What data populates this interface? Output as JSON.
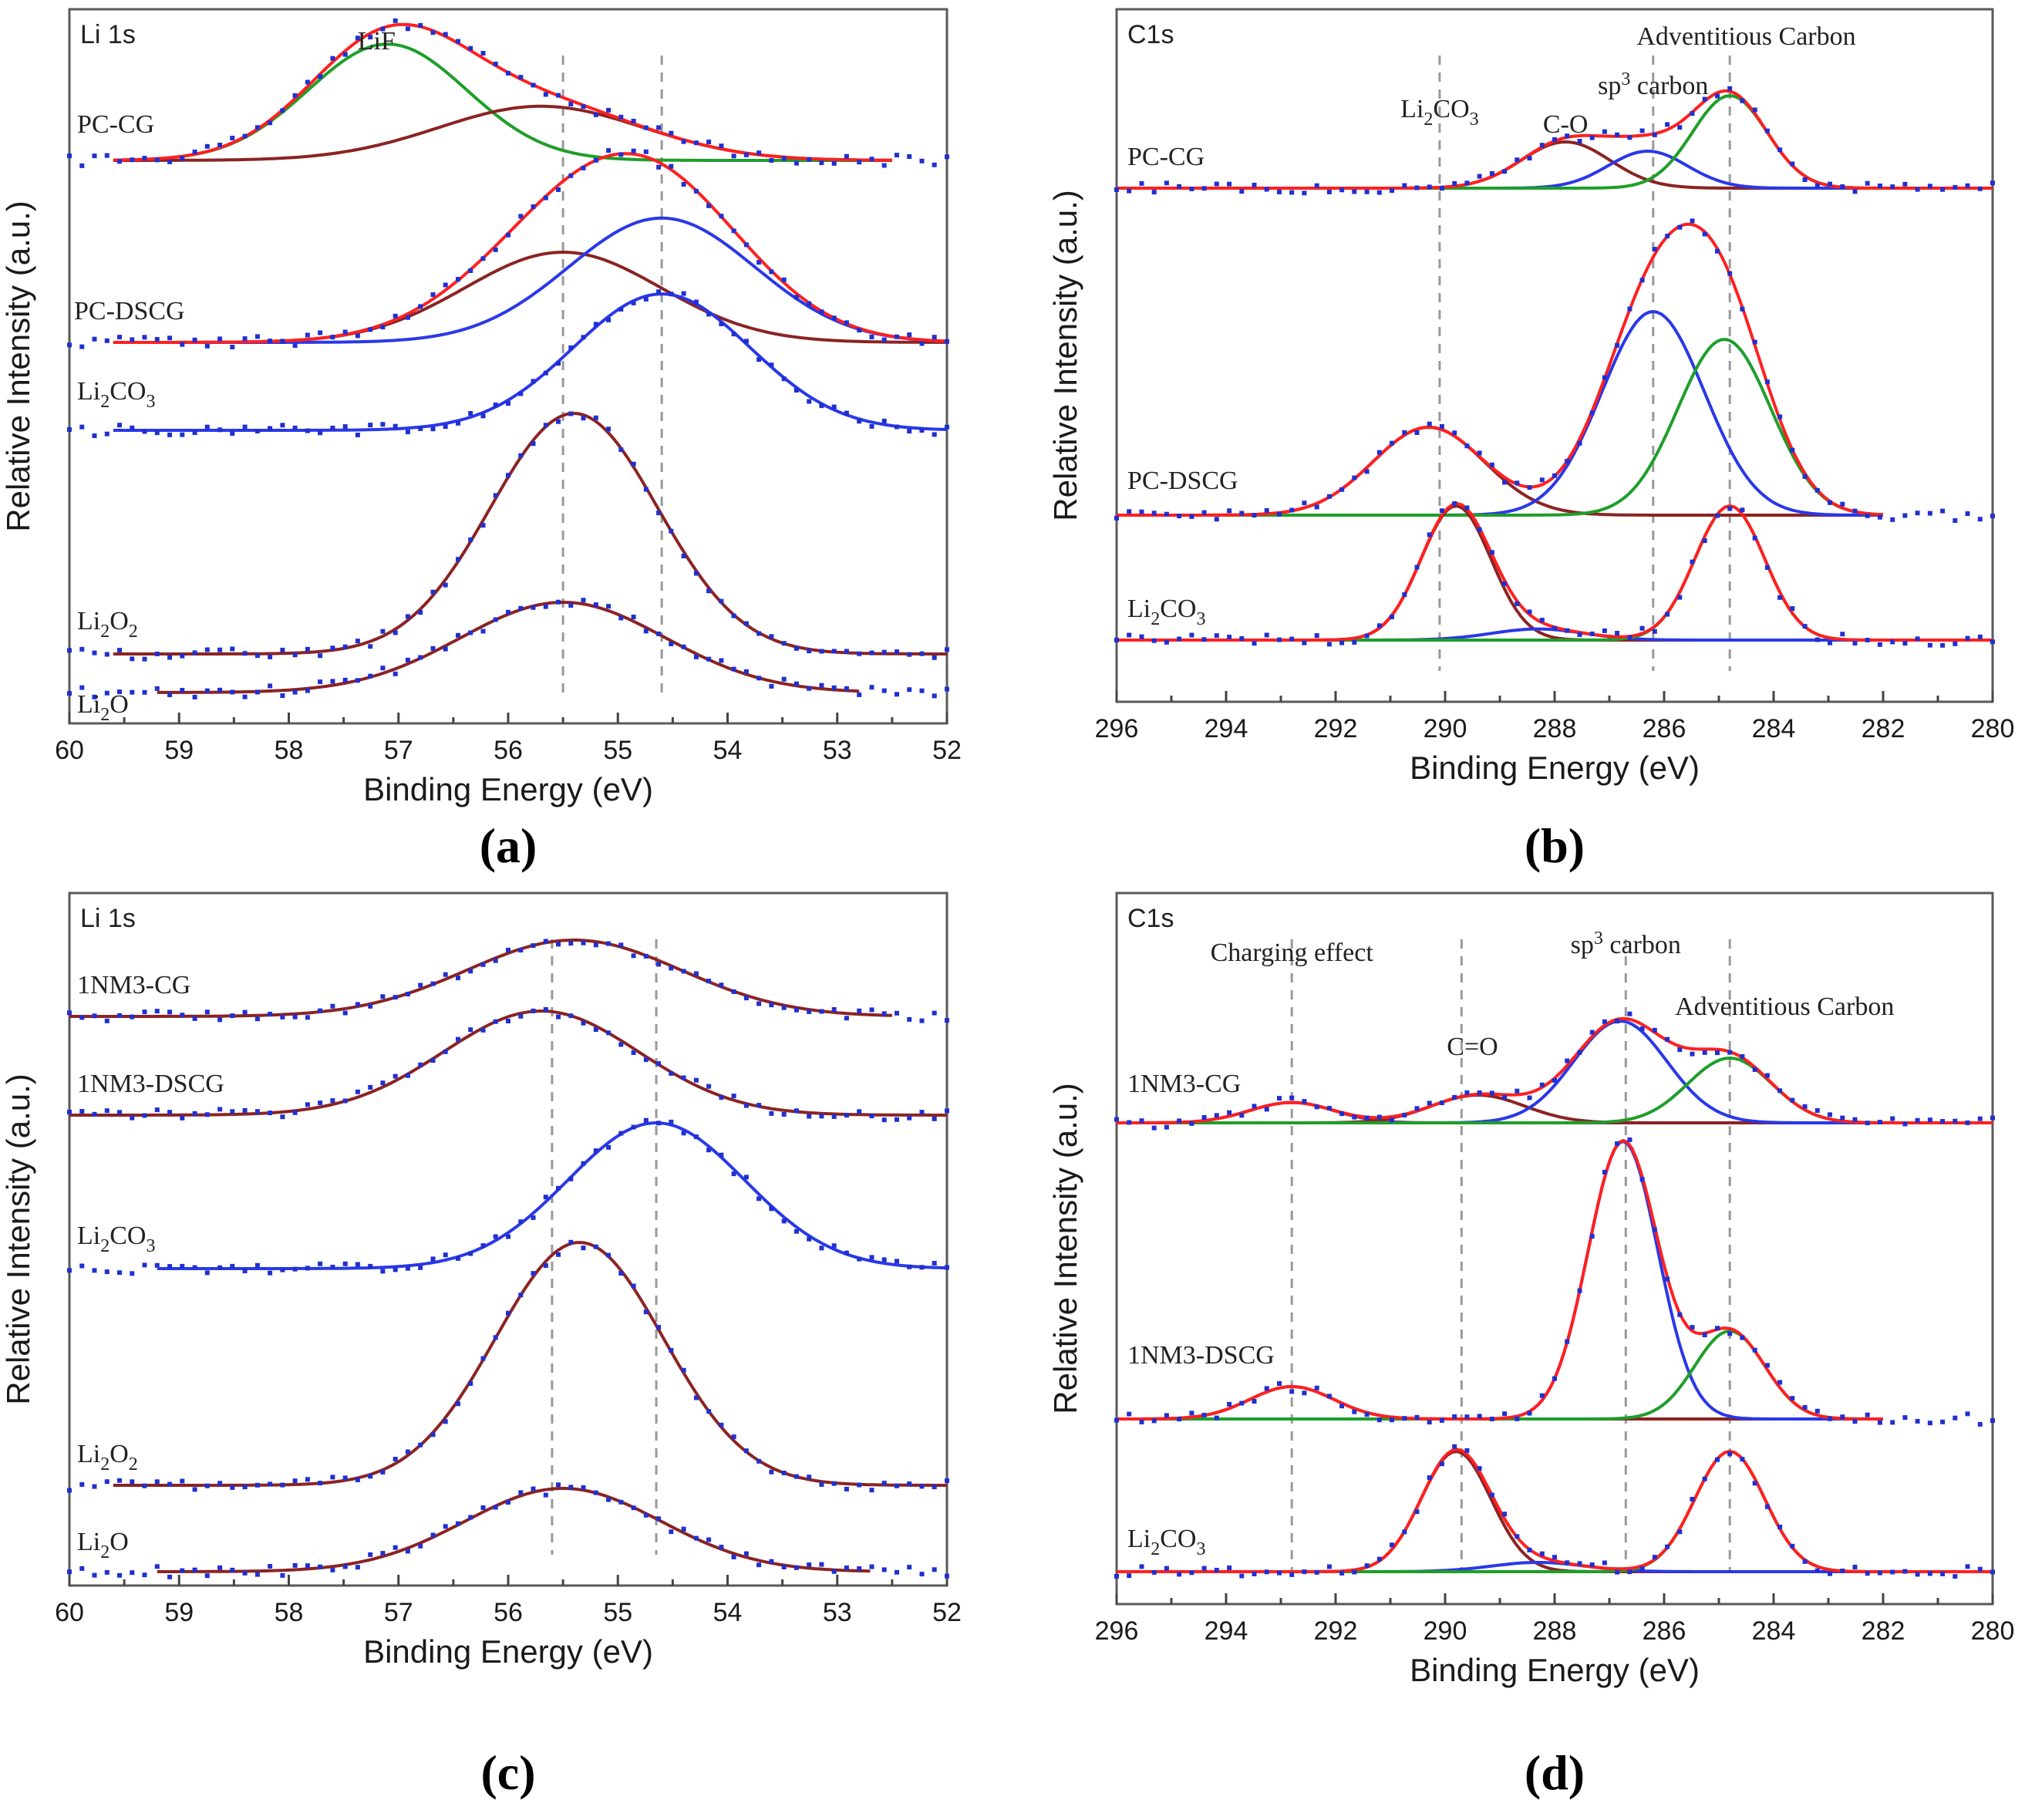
{
  "colors": {
    "fit_total": "#ff2020",
    "fit_component_brown": "#8b2323",
    "fit_component_blue": "#2a38e8",
    "fit_component_green": "#1e9e2a",
    "fit_component_purple": "#8a2a8a",
    "data_points": "#2030d0",
    "reference_lines": "#999999"
  },
  "chart_data": [
    {
      "panel": "a",
      "panel_letter": "(a)",
      "type": "line",
      "core_level": "Li 1s",
      "xlabel": "Binding Energy (eV)",
      "ylabel": "Relative Intensity (a.u.)",
      "xlim": [
        60,
        52
      ],
      "x_reversed": true,
      "xticks": [
        60,
        59,
        58,
        57,
        56,
        55,
        54,
        53,
        52
      ],
      "grid": false,
      "reference_lines_x": [
        55.5,
        54.6
      ],
      "annotations": [
        {
          "text": "LiF",
          "x": 57.2,
          "y_in_series": "PC-CG"
        }
      ],
      "series": [
        {
          "name": "PC-CG",
          "baseline": 0.0,
          "x_start": 59.6,
          "x_end": 52.5,
          "components": [
            {
              "role": "LiF",
              "color": "green",
              "center": 57.1,
              "fwhm": 1.7,
              "height": 0.58
            },
            {
              "color": "brown",
              "center": 55.7,
              "fwhm": 2.2,
              "height": 0.27
            }
          ],
          "total_color": "red"
        },
        {
          "name": "PC-DSCG",
          "baseline": 0.0,
          "x_start": 59.6,
          "x_end": 52.0,
          "components": [
            {
              "color": "brown",
              "center": 55.5,
              "fwhm": 2.1,
              "height": 0.45
            },
            {
              "color": "blue",
              "center": 54.6,
              "fwhm": 2.0,
              "height": 0.62
            }
          ],
          "total_color": "red"
        },
        {
          "name": "Li2CO3",
          "baseline": 0.0,
          "x_start": 59.6,
          "x_end": 52.0,
          "components": [
            {
              "color": "blue",
              "center": 54.6,
              "fwhm": 1.9,
              "height": 0.68
            }
          ],
          "total_color": "blue"
        },
        {
          "name": "Li2O2",
          "baseline": 0.0,
          "x_start": 59.6,
          "x_end": 52.0,
          "components": [
            {
              "color": "brown",
              "center": 55.4,
              "fwhm": 1.8,
              "height": 1.2
            }
          ],
          "total_color": "brown"
        },
        {
          "name": "Li2O",
          "baseline": 0.0,
          "x_start": 59.2,
          "x_end": 52.8,
          "components": [
            {
              "color": "brown",
              "center": 55.5,
              "fwhm": 2.2,
              "height": 0.45
            }
          ],
          "total_color": "brown"
        }
      ]
    },
    {
      "panel": "b",
      "panel_letter": "(b)",
      "type": "line",
      "core_level": "C1s",
      "xlabel": "Binding Energy (eV)",
      "ylabel": "Relative Intensity (a.u.)",
      "xlim": [
        296,
        280
      ],
      "x_reversed": true,
      "xticks": [
        296,
        294,
        292,
        290,
        288,
        286,
        284,
        282,
        280
      ],
      "grid": false,
      "reference_lines_x": [
        290.1,
        286.2,
        284.8
      ],
      "annotations": [
        {
          "text": "Li2CO3",
          "x": 290.1
        },
        {
          "text": "C-O",
          "x": 287.8
        },
        {
          "text": "sp3 carbon",
          "x": 286.2
        },
        {
          "text": "Adventitious Carbon",
          "x": 284.5
        }
      ],
      "series": [
        {
          "name": "PC-CG",
          "baseline": 0.0,
          "x_start": 296,
          "x_end": 280,
          "components": [
            {
              "color": "brown",
              "center": 287.8,
              "fwhm": 1.9,
              "height": 0.5
            },
            {
              "color": "blue",
              "center": 286.3,
              "fwhm": 1.7,
              "height": 0.4
            },
            {
              "color": "green",
              "center": 284.8,
              "fwhm": 1.6,
              "height": 1.0
            }
          ],
          "total_color": "red"
        },
        {
          "name": "PC-DSCG",
          "baseline": 0.0,
          "x_start": 296,
          "x_end": 282,
          "components": [
            {
              "color": "brown",
              "center": 290.3,
              "fwhm": 2.4,
              "height": 0.95
            },
            {
              "color": "blue",
              "center": 286.2,
              "fwhm": 2.2,
              "height": 2.2
            },
            {
              "color": "green",
              "center": 284.9,
              "fwhm": 2.0,
              "height": 1.9
            }
          ],
          "total_color": "red"
        },
        {
          "name": "Li2CO3",
          "baseline": 0.0,
          "x_start": 296,
          "x_end": 280,
          "components": [
            {
              "color": "brown",
              "center": 289.8,
              "fwhm": 1.5,
              "height": 1.45
            },
            {
              "color": "blue",
              "center": 288.3,
              "fwhm": 2.0,
              "height": 0.12
            },
            {
              "color": "green",
              "center": 284.8,
              "fwhm": 1.5,
              "height": 1.45
            }
          ],
          "total_color": "red"
        }
      ]
    },
    {
      "panel": "c",
      "panel_letter": "(c)",
      "type": "line",
      "core_level": "Li 1s",
      "xlabel": "Binding Energy (eV)",
      "ylabel": "Relative Intensity (a.u.)",
      "xlim": [
        60,
        52
      ],
      "x_reversed": true,
      "xticks": [
        60,
        59,
        58,
        57,
        56,
        55,
        54,
        53,
        52
      ],
      "grid": false,
      "reference_lines_x": [
        55.6,
        54.65
      ],
      "annotations": [],
      "series": [
        {
          "name": "1NM3-CG",
          "baseline": 0.0,
          "x_start": 60,
          "x_end": 52.5,
          "components": [
            {
              "color": "brown",
              "center": 55.4,
              "fwhm": 2.3,
              "height": 0.55
            }
          ],
          "total_color": "brown"
        },
        {
          "name": "1NM3-DSCG",
          "baseline": 0.0,
          "x_start": 60,
          "x_end": 52.0,
          "components": [
            {
              "color": "brown",
              "center": 55.7,
              "fwhm": 2.1,
              "height": 0.75
            }
          ],
          "total_color": "brown"
        },
        {
          "name": "Li2CO3",
          "baseline": 0.0,
          "x_start": 59.2,
          "x_end": 52.0,
          "components": [
            {
              "color": "blue",
              "center": 54.65,
              "fwhm": 1.9,
              "height": 1.05
            }
          ],
          "total_color": "blue"
        },
        {
          "name": "Li2O2",
          "baseline": 0.0,
          "x_start": 59.6,
          "x_end": 52.0,
          "components": [
            {
              "color": "brown",
              "center": 55.35,
              "fwhm": 1.8,
              "height": 1.75
            }
          ],
          "total_color": "brown"
        },
        {
          "name": "Li2O",
          "baseline": 0.0,
          "x_start": 59.2,
          "x_end": 52.7,
          "components": [
            {
              "color": "brown",
              "center": 55.5,
              "fwhm": 2.1,
              "height": 0.6
            }
          ],
          "total_color": "brown"
        }
      ]
    },
    {
      "panel": "d",
      "panel_letter": "(d)",
      "type": "line",
      "core_level": "C1s",
      "xlabel": "Binding Energy (eV)",
      "ylabel": "Relative Intensity (a.u.)",
      "xlim": [
        296,
        280
      ],
      "x_reversed": true,
      "xticks": [
        296,
        294,
        292,
        290,
        288,
        286,
        284,
        282,
        280
      ],
      "grid": false,
      "reference_lines_x": [
        292.8,
        289.7,
        286.7,
        284.8
      ],
      "annotations": [
        {
          "text": "Charging effect",
          "x": 292.8
        },
        {
          "text": "C=O",
          "x": 289.5
        },
        {
          "text": "sp3 carbon",
          "x": 286.7
        },
        {
          "text": "Adventitious Carbon",
          "x": 283.8
        }
      ],
      "series": [
        {
          "name": "1NM3-CG",
          "baseline": 0.0,
          "x_start": 296,
          "x_end": 280,
          "components": [
            {
              "color": "purple",
              "center": 292.8,
              "fwhm": 1.8,
              "height": 0.22
            },
            {
              "color": "brown",
              "center": 289.4,
              "fwhm": 2.0,
              "height": 0.3
            },
            {
              "color": "blue",
              "center": 286.8,
              "fwhm": 2.0,
              "height": 1.1
            },
            {
              "color": "green",
              "center": 284.8,
              "fwhm": 1.8,
              "height": 0.7
            }
          ],
          "total_color": "red"
        },
        {
          "name": "1NM3-DSCG",
          "baseline": 0.0,
          "x_start": 296,
          "x_end": 282,
          "components": [
            {
              "color": "brown",
              "center": 292.8,
              "fwhm": 1.8,
              "height": 0.35
            },
            {
              "color": "blue",
              "center": 286.75,
              "fwhm": 1.5,
              "height": 3.0
            },
            {
              "color": "green",
              "center": 284.8,
              "fwhm": 1.5,
              "height": 0.95
            }
          ],
          "total_color": "red"
        },
        {
          "name": "Li2CO3",
          "baseline": 0.0,
          "x_start": 296,
          "x_end": 280,
          "components": [
            {
              "color": "brown",
              "center": 289.8,
              "fwhm": 1.5,
              "height": 1.3
            },
            {
              "color": "blue",
              "center": 288.3,
              "fwhm": 2.0,
              "height": 0.1
            },
            {
              "color": "green",
              "center": 284.8,
              "fwhm": 1.5,
              "height": 1.3
            }
          ],
          "total_color": "red"
        }
      ]
    }
  ]
}
